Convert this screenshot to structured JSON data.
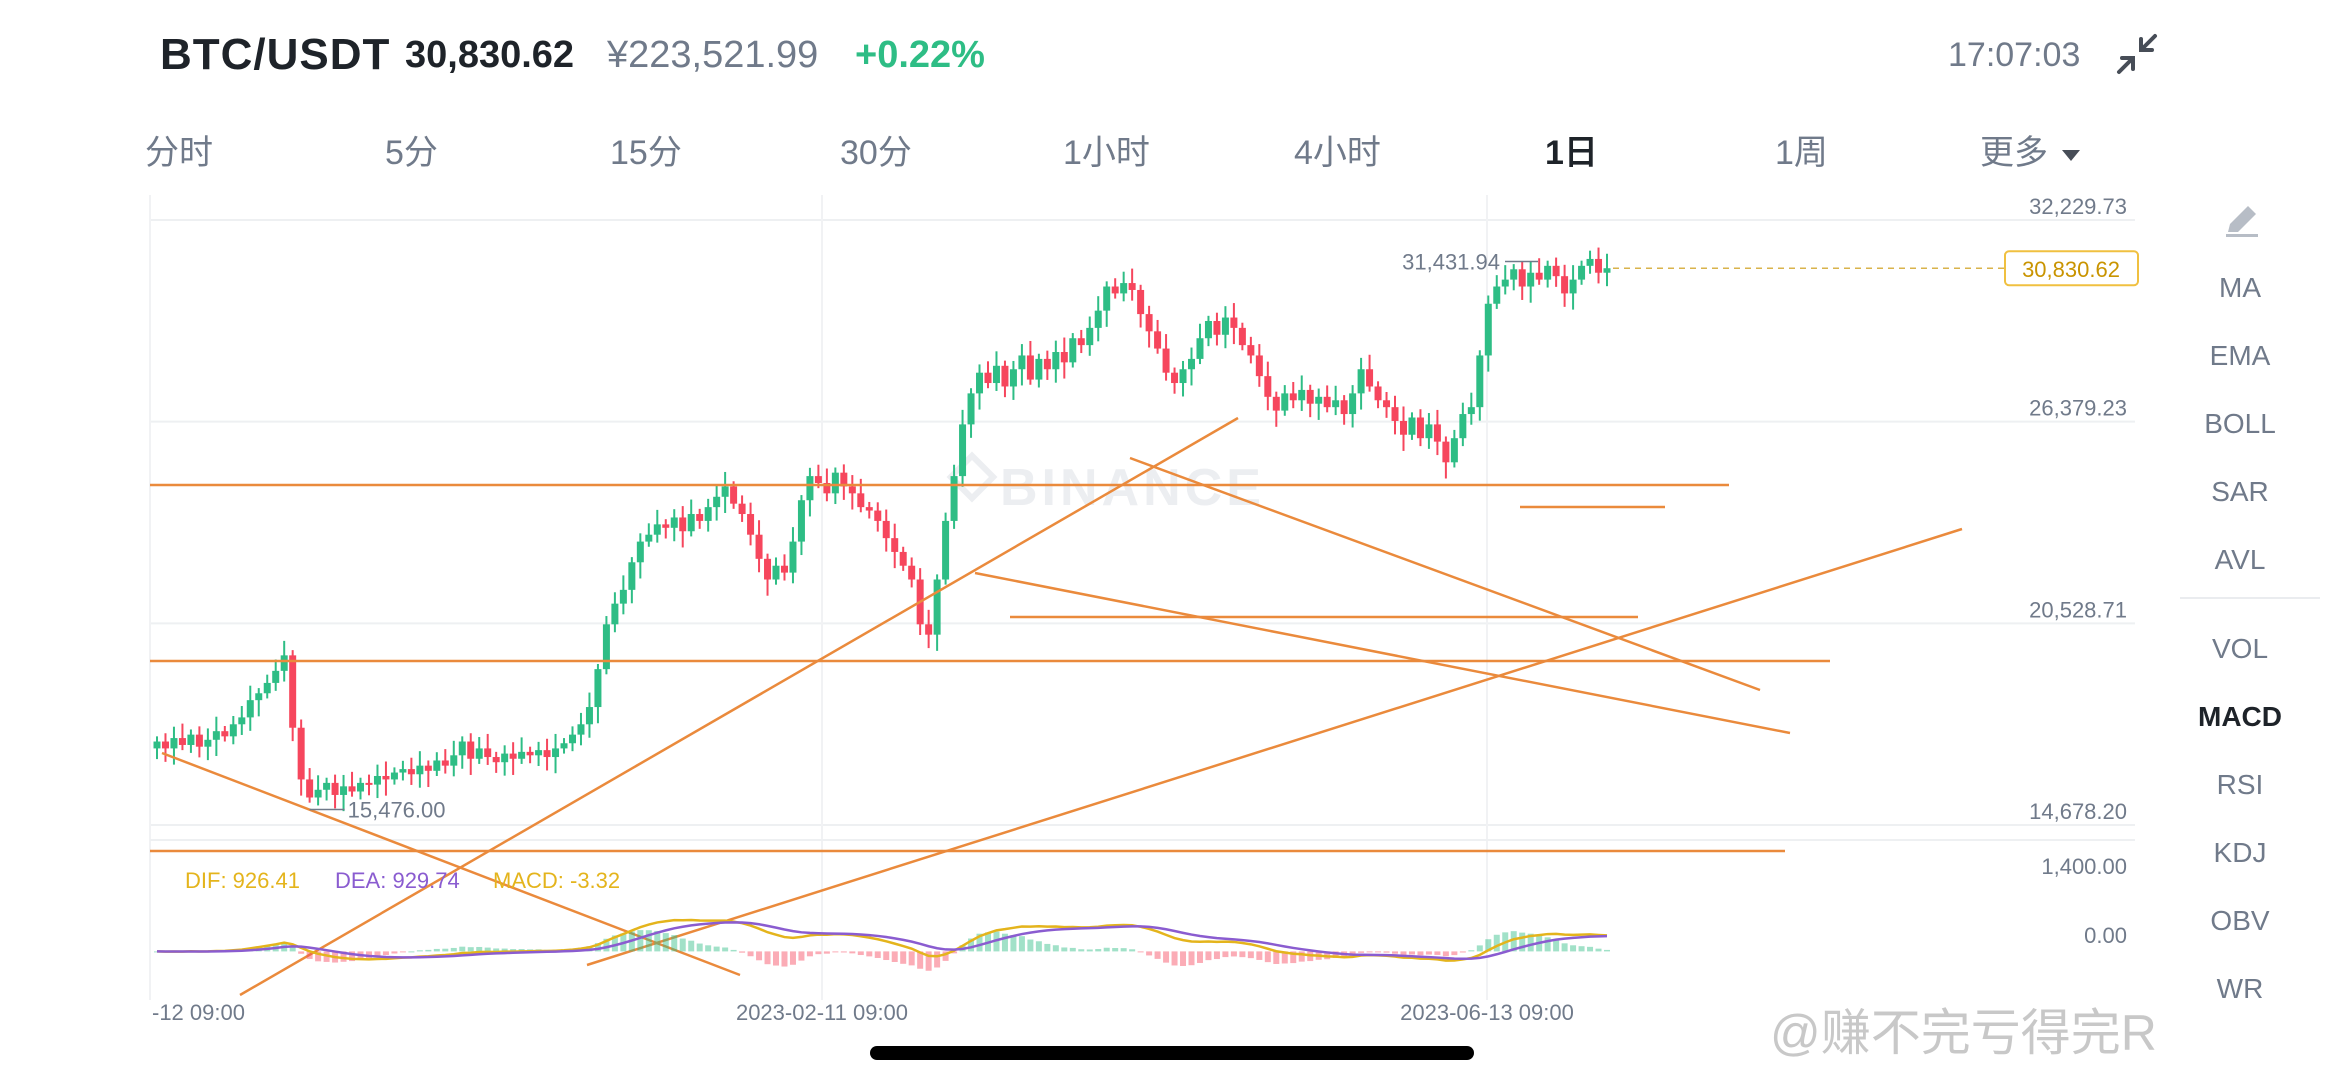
{
  "header": {
    "pair": "BTC/USDT",
    "price": "30,830.62",
    "cny": "¥223,521.99",
    "change": "+0.22%",
    "time": "17:07:03"
  },
  "tabs": [
    {
      "label": "分时",
      "active": false
    },
    {
      "label": "5分",
      "active": false
    },
    {
      "label": "15分",
      "active": false
    },
    {
      "label": "30分",
      "active": false
    },
    {
      "label": "1小时",
      "active": false
    },
    {
      "label": "4小时",
      "active": false
    },
    {
      "label": "1日",
      "active": true
    },
    {
      "label": "1周",
      "active": false
    },
    {
      "label": "更多",
      "active": false
    }
  ],
  "indicators": {
    "main": [
      "MA",
      "EMA",
      "BOLL",
      "SAR",
      "AVL"
    ],
    "sub": [
      "VOL",
      "MACD",
      "RSI",
      "KDJ",
      "OBV",
      "WR"
    ],
    "active": "MACD"
  },
  "colors": {
    "up": "#2ebd85",
    "down": "#f6465d",
    "trendline": "#ea8a3c",
    "dif": "#e4b41c",
    "dea": "#8a5cd0",
    "accent": "#c99400"
  },
  "chart_data": {
    "type": "candlestick",
    "symbol": "BTC/USDT",
    "interval": "1日",
    "price_axis_labels": [
      "32,229.73",
      "26,379.23",
      "20,528.71",
      "14,678.20"
    ],
    "ylim": [
      14678.2,
      32229.73
    ],
    "x_tick_labels": [
      "-12 09:00",
      "2023-02-11 09:00",
      "2023-06-13 09:00"
    ],
    "last_price_label": "30,830.62",
    "last_price": 30830.62,
    "high_marker": {
      "label": "31,431.94",
      "value": 31431.94
    },
    "low_marker": {
      "label": "15,476.00",
      "value": 15476.0
    },
    "watermark": "BINANCE",
    "candle_closes": [
      17100,
      16900,
      17200,
      17000,
      17300,
      16950,
      17150,
      17400,
      17250,
      17600,
      17800,
      18300,
      18500,
      18800,
      19150,
      19600,
      17500,
      16000,
      15476,
      15700,
      15900,
      15550,
      15800,
      15650,
      15900,
      15850,
      16100,
      16000,
      16200,
      16300,
      16150,
      16400,
      16250,
      16550,
      16400,
      16700,
      17100,
      16600,
      16900,
      16650,
      16500,
      16750,
      16600,
      16800,
      16700,
      16850,
      16650,
      16900,
      17050,
      17300,
      17600,
      18100,
      19200,
      20500,
      21100,
      21500,
      22300,
      22900,
      23100,
      23400,
      23300,
      23600,
      23200,
      23700,
      23500,
      23900,
      24200,
      24500,
      24000,
      23700,
      23100,
      22400,
      21800,
      22200,
      22000,
      22900,
      24100,
      24800,
      24600,
      24300,
      24900,
      24500,
      24300,
      23900,
      23800,
      23500,
      23000,
      22600,
      22200,
      21800,
      20500,
      20200,
      21800,
      23500,
      24800,
      26300,
      27200,
      27800,
      27500,
      28000,
      27400,
      27900,
      28300,
      27600,
      28200,
      27900,
      28400,
      28100,
      28800,
      28600,
      29100,
      29600,
      30300,
      30100,
      30400,
      30200,
      29500,
      29000,
      28500,
      27800,
      27500,
      27900,
      28200,
      28800,
      29300,
      28900,
      29400,
      29100,
      28600,
      28300,
      27700,
      27100,
      26700,
      27200,
      27000,
      27300,
      26900,
      27100,
      26800,
      27000,
      26600,
      27200,
      27900,
      27400,
      27000,
      26800,
      26400,
      26000,
      26500,
      25900,
      26300,
      25800,
      25200,
      25900,
      26600,
      26800,
      28300,
      29800,
      30300,
      30500,
      30800,
      30300,
      30700,
      30500,
      30900,
      30600,
      30100,
      30500,
      30900,
      31100,
      30700,
      30830.62
    ],
    "macd": {
      "dif_label": "DIF: 926.41",
      "dea_label": "DEA: 929.74",
      "macd_label": "MACD: -3.32",
      "dif": 926.41,
      "dea": 929.74,
      "macd": -3.32,
      "axis_labels": [
        "1,400.00",
        "0.00"
      ],
      "ylim": [
        -600,
        1400
      ]
    }
  },
  "watermark": "@赚不完亏得完R"
}
